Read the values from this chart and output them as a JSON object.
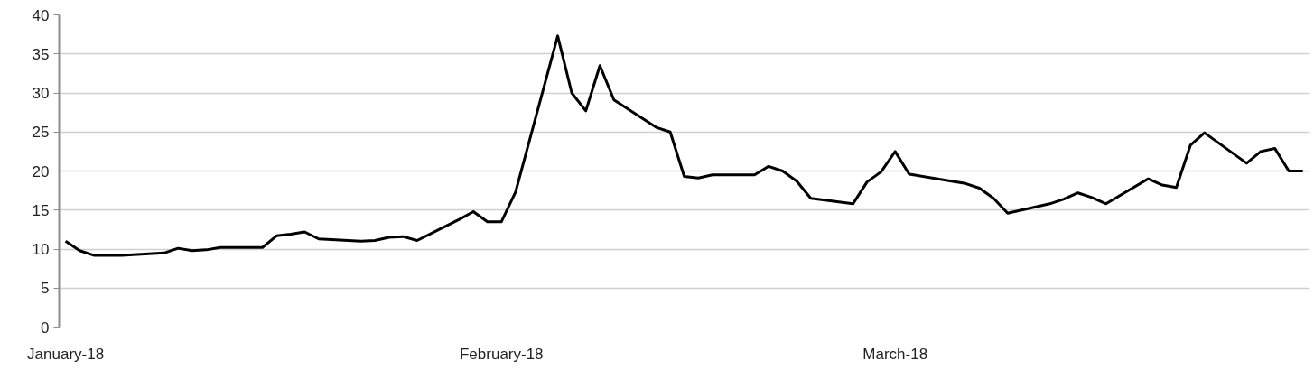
{
  "chart_data": {
    "type": "line",
    "x": [
      "2018-01-01",
      "2018-01-02",
      "2018-01-03",
      "2018-01-04",
      "2018-01-05",
      "2018-01-08",
      "2018-01-09",
      "2018-01-10",
      "2018-01-11",
      "2018-01-12",
      "2018-01-15",
      "2018-01-16",
      "2018-01-17",
      "2018-01-18",
      "2018-01-19",
      "2018-01-22",
      "2018-01-23",
      "2018-01-24",
      "2018-01-25",
      "2018-01-26",
      "2018-01-29",
      "2018-01-30",
      "2018-01-31",
      "2018-02-01",
      "2018-02-02",
      "2018-02-05",
      "2018-02-06",
      "2018-02-07",
      "2018-02-08",
      "2018-02-09",
      "2018-02-12",
      "2018-02-13",
      "2018-02-14",
      "2018-02-15",
      "2018-02-16",
      "2018-02-19",
      "2018-02-20",
      "2018-02-21",
      "2018-02-22",
      "2018-02-23",
      "2018-02-26",
      "2018-02-27",
      "2018-02-28",
      "2018-03-01",
      "2018-03-02",
      "2018-03-05",
      "2018-03-06",
      "2018-03-07",
      "2018-03-08",
      "2018-03-09",
      "2018-03-12",
      "2018-03-13",
      "2018-03-14",
      "2018-03-15",
      "2018-03-16",
      "2018-03-19",
      "2018-03-20",
      "2018-03-21",
      "2018-03-22",
      "2018-03-23",
      "2018-03-26",
      "2018-03-27",
      "2018-03-28",
      "2018-03-29",
      "2018-03-30"
    ],
    "series": [
      {
        "color": "#000000",
        "values": [
          11.0,
          9.8,
          9.2,
          9.2,
          9.2,
          9.5,
          10.1,
          9.8,
          9.9,
          10.2,
          10.2,
          11.7,
          11.9,
          12.2,
          11.3,
          11.0,
          11.1,
          11.5,
          11.6,
          11.1,
          13.8,
          14.8,
          13.5,
          13.5,
          17.3,
          37.3,
          30.0,
          27.7,
          33.5,
          29.1,
          25.6,
          25.0,
          19.3,
          19.1,
          19.5,
          19.5,
          20.6,
          20.0,
          18.7,
          16.5,
          15.8,
          18.6,
          19.9,
          22.5,
          19.6,
          18.7,
          18.4,
          17.8,
          16.5,
          14.6,
          15.8,
          16.4,
          17.2,
          16.6,
          15.8,
          19.0,
          18.2,
          17.9,
          23.3,
          24.9,
          21.0,
          22.5,
          22.9,
          20.0,
          20.0
        ]
      }
    ],
    "xlim": [
      "2017-12-31T13:00",
      "2018-03-30T12:00"
    ],
    "xticks": [
      {
        "value": "2018-01-01",
        "label": "January-18"
      },
      {
        "value": "2018-02-01",
        "label": "February-18"
      },
      {
        "value": "2018-03-01",
        "label": "March-18"
      }
    ],
    "ylim": [
      0,
      40
    ],
    "yticks": [
      0,
      5,
      10,
      15,
      20,
      25,
      30,
      35,
      40
    ],
    "grid": "y",
    "line_style": "solid"
  }
}
